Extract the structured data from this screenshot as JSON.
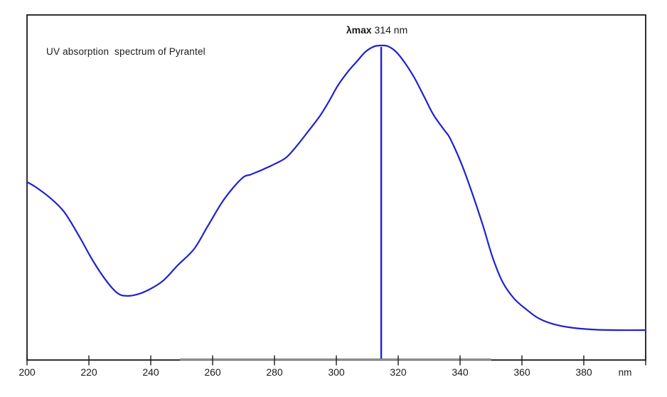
{
  "title": "UV absorption  spectrum of Pyrantel",
  "annotation": {
    "bold": "λmax",
    "rest": " 314 nm"
  },
  "xaxis": {
    "unit": "nm",
    "ticks": [
      {
        "nm": 200,
        "label": "200"
      },
      {
        "nm": 220,
        "label": "220"
      },
      {
        "nm": 240,
        "label": "240"
      },
      {
        "nm": 260,
        "label": "260"
      },
      {
        "nm": 280,
        "label": "280"
      },
      {
        "nm": 300,
        "label": "300"
      },
      {
        "nm": 320,
        "label": "320"
      },
      {
        "nm": 340,
        "label": "340"
      },
      {
        "nm": 360,
        "label": "360"
      },
      {
        "nm": 380,
        "label": "380"
      }
    ],
    "end_tick_nm": 400
  },
  "colors": {
    "curve": "#2121cc",
    "axis": "#1a1a1a",
    "axis_gray_segment": "#8f8f8f",
    "text": "#1a1a1a"
  },
  "chart_data": {
    "type": "line",
    "title": "UV absorption spectrum of Pyrantel",
    "xlabel": "nm",
    "ylabel": "",
    "xlim": [
      200,
      400
    ],
    "x_tick_interval": 20,
    "grid": false,
    "legend": false,
    "y_units": "relative absorbance (peak = 1, y-axis unlabeled in figure)",
    "peak": {
      "wavelength_nm": 314,
      "label": "λmax 314 nm",
      "marker": "vertical-line"
    },
    "gray_axis_segment_nm": [
      249.4,
      350.1
    ],
    "series": [
      {
        "name": "Pyrantel UV absorption",
        "x": [
          200,
          202.8,
          207.4,
          212,
          216.6,
          221.1,
          225.3,
          229.2,
          232.2,
          235.4,
          239.5,
          244.1,
          248.7,
          254,
          258.4,
          263.7,
          269.4,
          272.4,
          276.3,
          280.2,
          283.9,
          287.8,
          290.8,
          294.7,
          297.7,
          300.5,
          303.9,
          306.7,
          309.4,
          312.2,
          314.5,
          316.6,
          319.3,
          322.3,
          325.3,
          328.5,
          331.5,
          334.9,
          336.8,
          340.7,
          344.6,
          347.6,
          350.6,
          353.8,
          357.5,
          361.4,
          365.3,
          369.9,
          375.2,
          382.8,
          391.3,
          400
        ],
        "y": [
          0.566,
          0.55,
          0.516,
          0.471,
          0.398,
          0.319,
          0.256,
          0.213,
          0.204,
          0.208,
          0.224,
          0.253,
          0.301,
          0.353,
          0.425,
          0.511,
          0.577,
          0.59,
          0.606,
          0.624,
          0.645,
          0.688,
          0.726,
          0.776,
          0.824,
          0.873,
          0.919,
          0.95,
          0.98,
          0.997,
          1.0,
          0.998,
          0.98,
          0.943,
          0.896,
          0.835,
          0.778,
          0.731,
          0.704,
          0.618,
          0.511,
          0.421,
          0.324,
          0.247,
          0.195,
          0.161,
          0.133,
          0.115,
          0.104,
          0.097,
          0.095,
          0.095
        ]
      }
    ]
  }
}
